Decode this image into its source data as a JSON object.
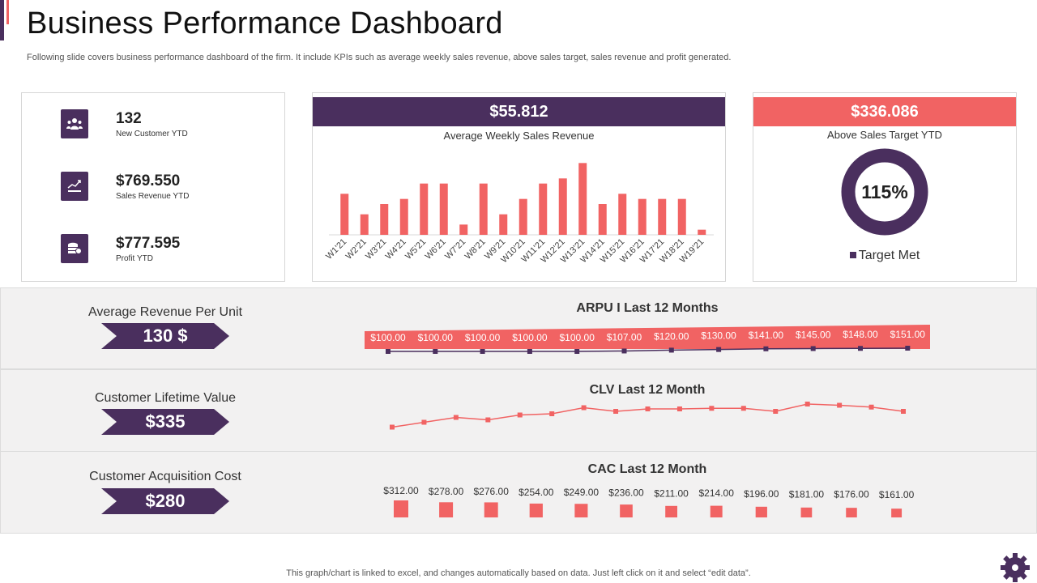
{
  "header": {
    "title": "Business Performance Dashboard",
    "subtitle": "Following slide covers business performance dashboard of the firm. It include KPIs such as average weekly sales revenue, above sales target, sales revenue and profit generated."
  },
  "kpis": [
    {
      "value": "132",
      "label": "New Customer  YTD",
      "icon": "customers-icon"
    },
    {
      "value": "$769.550",
      "label": "Sales Revenue  YTD",
      "icon": "revenue-chart-icon"
    },
    {
      "value": "$777.595",
      "label": "Profit  YTD",
      "icon": "coins-icon"
    }
  ],
  "weekly": {
    "band_value": "$55.812",
    "caption": "Average  Weekly Sales Revenue"
  },
  "target": {
    "band_value": "$336.086",
    "caption": "Above  Sales Target  YTD",
    "percent": "115%",
    "legend": "Target Met"
  },
  "metrics": {
    "arpu": {
      "label": "Average Revenue  Per Unit",
      "value": "130 $",
      "chart_title": "ARPU I Last 12 Months"
    },
    "clv": {
      "label": "Customer Lifetime Value",
      "value": "$335",
      "chart_title": "CLV Last 12 Month"
    },
    "cac": {
      "label": "Customer Acquisition Cost",
      "value": "$280",
      "chart_title": "CAC Last 12 Month"
    }
  },
  "footer": {
    "note": "This graph/chart is linked to excel,  and changes automatically based on data. Just left click on it and select “edit data”."
  },
  "colors": {
    "purple": "#4a2f5e",
    "coral": "#f16363",
    "panel": "#f2f1f1"
  },
  "chart_data": [
    {
      "type": "bar",
      "title": "Average  Weekly Sales Revenue",
      "categories": [
        "W1'21",
        "W2'21",
        "W3'21",
        "W4'21",
        "W5'21",
        "W6'21",
        "W7'21",
        "W8'21",
        "W9'21",
        "W10'21",
        "W11'21",
        "W12'21",
        "W13'21",
        "W14'21",
        "W15'21",
        "W16'21",
        "W17'21",
        "W18'21",
        "W19'21"
      ],
      "values": [
        8,
        4,
        6,
        7,
        10,
        10,
        2,
        10,
        4,
        7,
        10,
        11,
        14,
        6,
        8,
        7,
        7,
        7,
        1
      ],
      "ylim": [
        0,
        15
      ]
    },
    {
      "type": "pie",
      "title": "Above  Sales Target  YTD",
      "labels": [
        "Target Met"
      ],
      "values": [
        100
      ],
      "center_label": "115%"
    },
    {
      "type": "line",
      "title": "ARPU I Last 12 Months",
      "values": [
        100,
        100,
        100,
        100,
        100,
        107,
        120,
        130,
        141,
        145,
        148,
        151
      ],
      "data_labels": [
        "$100.00",
        "$100.00",
        "$100.00",
        "$100.00",
        "$100.00",
        "$107.00",
        "$120.00",
        "$130.00",
        "$141.00",
        "$145.00",
        "$148.00",
        "$151.00"
      ],
      "ylim": [
        100,
        151
      ]
    },
    {
      "type": "line",
      "title": "CLV Last 12 Month",
      "values": [
        310,
        318,
        326,
        322,
        330,
        332,
        342,
        336,
        340,
        340,
        341,
        341,
        336,
        348,
        346,
        343,
        336
      ],
      "ylim": [
        300,
        360
      ]
    },
    {
      "type": "bar",
      "title": "CAC Last 12 Month",
      "values": [
        312,
        278,
        276,
        254,
        249,
        236,
        211,
        214,
        196,
        181,
        176,
        161
      ],
      "data_labels": [
        "$312.00",
        "$278.00",
        "$276.00",
        "$254.00",
        "$249.00",
        "$236.00",
        "$211.00",
        "$214.00",
        "$196.00",
        "$181.00",
        "$176.00",
        "$161.00"
      ],
      "ylim": [
        0,
        312
      ]
    }
  ]
}
